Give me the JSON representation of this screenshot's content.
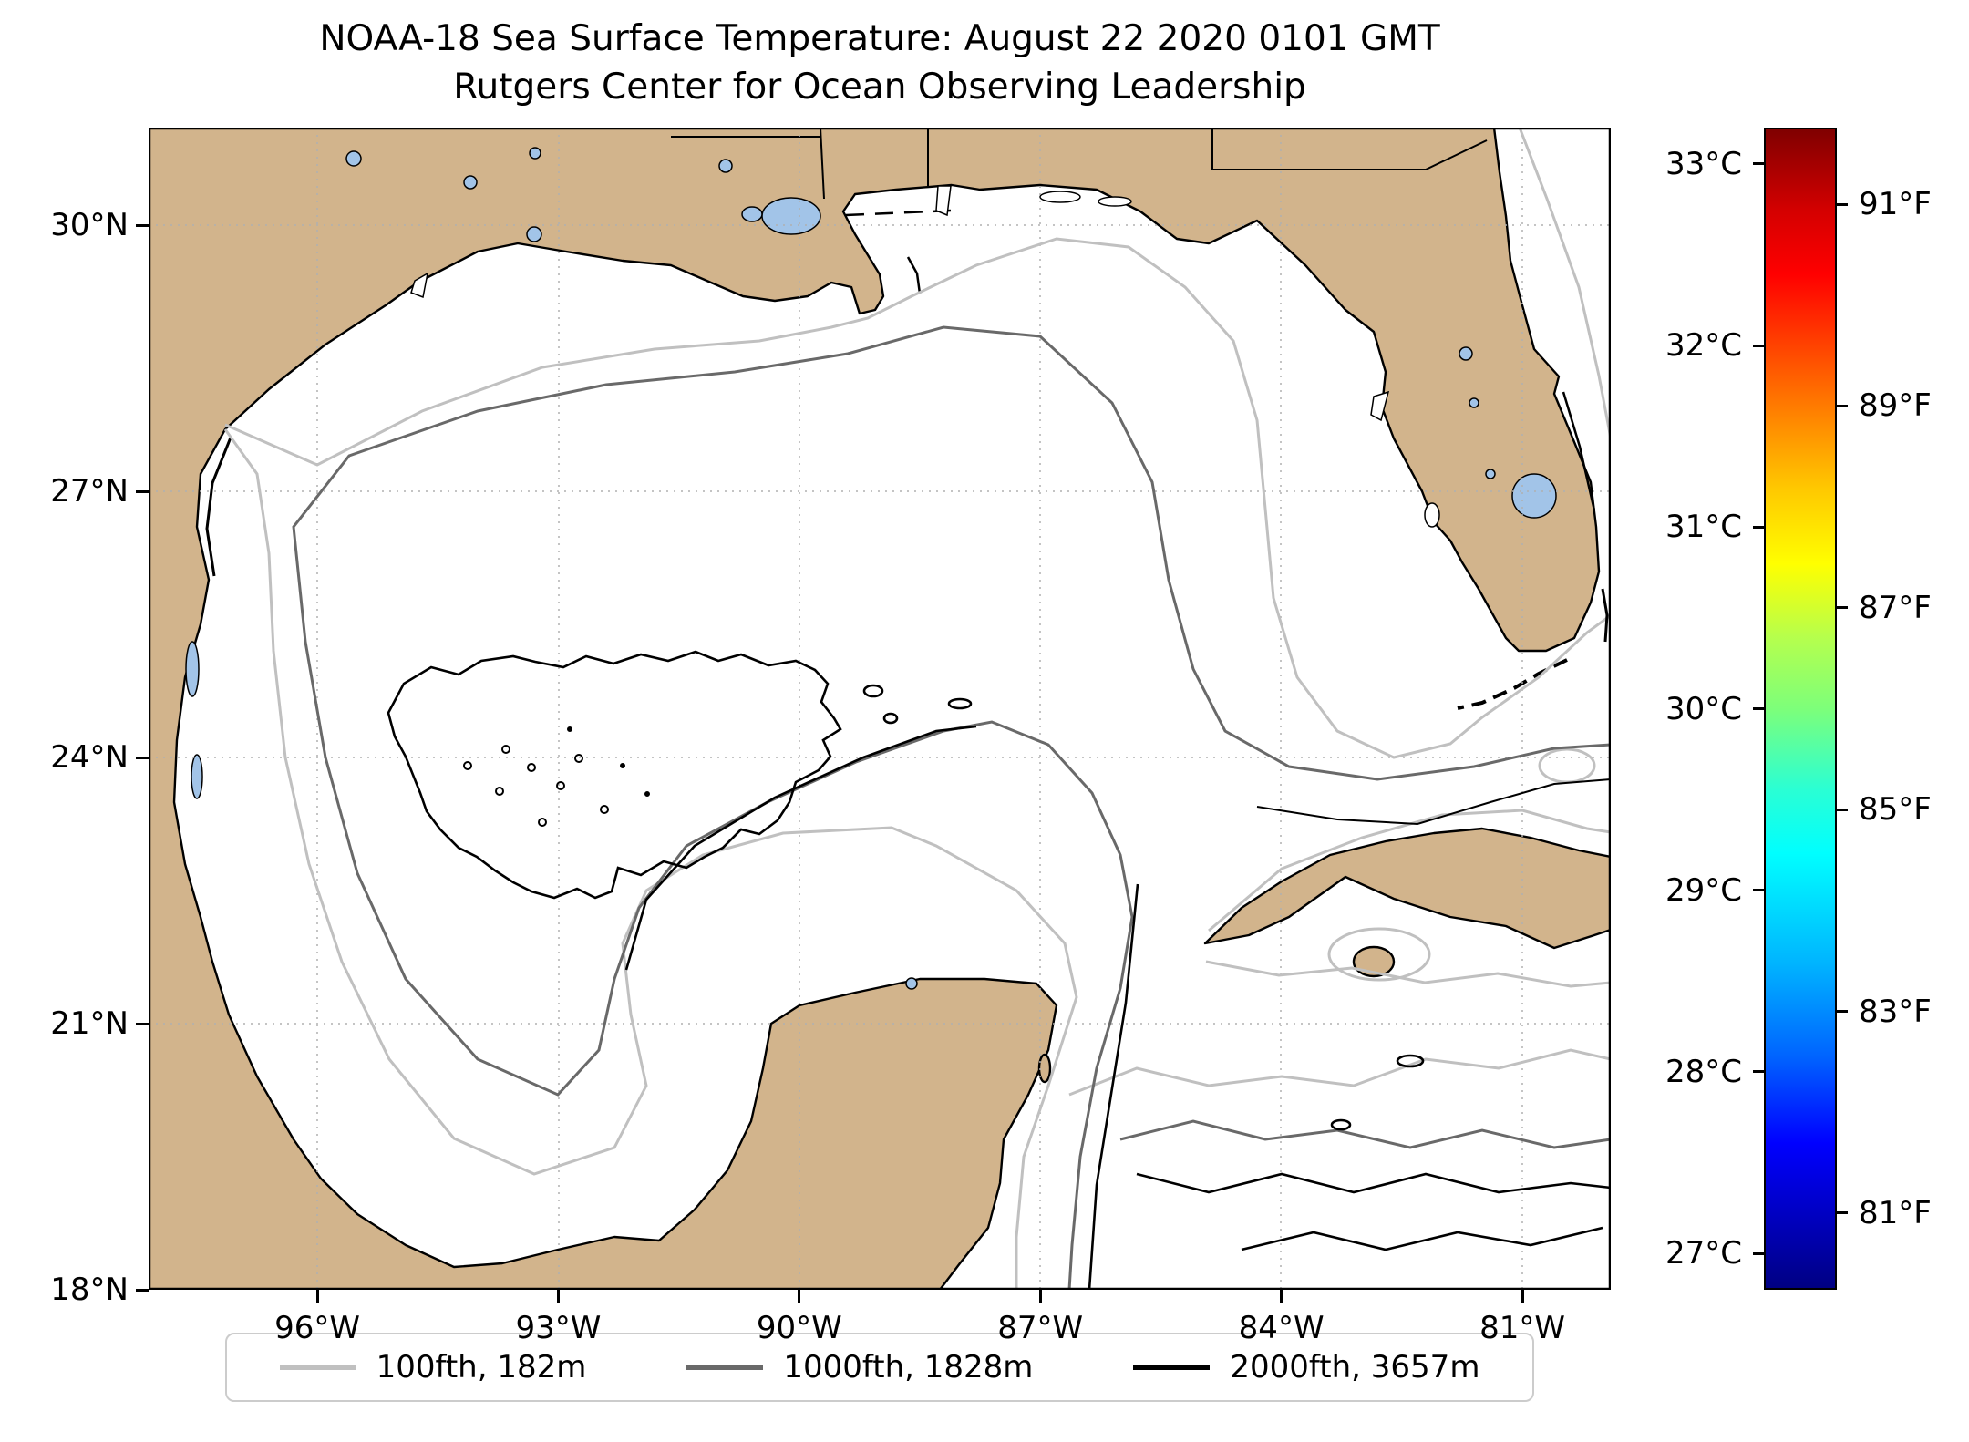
{
  "title": {
    "line1": "NOAA-18 Sea Surface Temperature: August 22 2020 0101 GMT",
    "line2": "Rutgers Center for Ocean Observing Leadership"
  },
  "map": {
    "region": "Gulf of Mexico",
    "x_ticks": [
      {
        "label": "96°W",
        "lon_w": 96
      },
      {
        "label": "93°W",
        "lon_w": 93
      },
      {
        "label": "90°W",
        "lon_w": 90
      },
      {
        "label": "87°W",
        "lon_w": 87
      },
      {
        "label": "84°W",
        "lon_w": 84
      },
      {
        "label": "81°W",
        "lon_w": 81
      }
    ],
    "y_ticks": [
      {
        "label": "30°N",
        "lat_n": 30
      },
      {
        "label": "27°N",
        "lat_n": 27
      },
      {
        "label": "24°N",
        "lat_n": 24
      },
      {
        "label": "21°N",
        "lat_n": 21
      },
      {
        "label": "18°N",
        "lat_n": 18
      }
    ],
    "grid": "dashed"
  },
  "colorbar": {
    "colormap": "jet",
    "scale_min_c": 26.8,
    "scale_max_c": 33.2,
    "celsius_ticks": [
      {
        "label": "33°C",
        "value_c": 33
      },
      {
        "label": "32°C",
        "value_c": 32
      },
      {
        "label": "31°C",
        "value_c": 31
      },
      {
        "label": "30°C",
        "value_c": 30
      },
      {
        "label": "29°C",
        "value_c": 29
      },
      {
        "label": "28°C",
        "value_c": 28
      },
      {
        "label": "27°C",
        "value_c": 27
      }
    ],
    "fahrenheit_ticks": [
      {
        "label": "91°F",
        "value_f": 91
      },
      {
        "label": "89°F",
        "value_f": 89
      },
      {
        "label": "87°F",
        "value_f": 87
      },
      {
        "label": "85°F",
        "value_f": 85
      },
      {
        "label": "83°F",
        "value_f": 83
      },
      {
        "label": "81°F",
        "value_f": 81
      }
    ]
  },
  "legend": {
    "items": [
      {
        "label": "100fth, 182m",
        "color": "#c0c0c0"
      },
      {
        "label": "1000fth, 1828m",
        "color": "#696969"
      },
      {
        "label": "2000fth, 3657m",
        "color": "#000000"
      }
    ]
  },
  "colors": {
    "land": "#d2b48c",
    "lake": "#a2c4e8",
    "ocean": "#ffffff",
    "grid": "#b0b0b0",
    "coastline": "#000000"
  }
}
